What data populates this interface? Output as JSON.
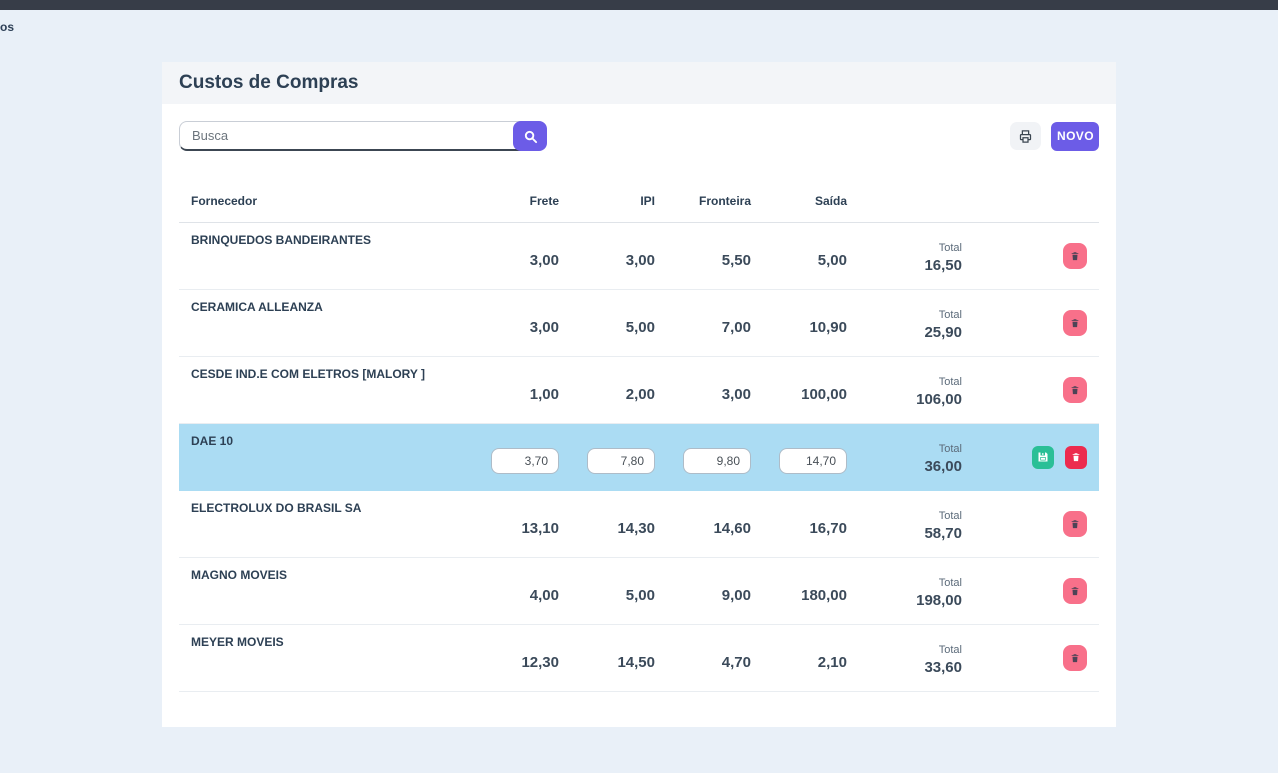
{
  "page": {
    "nav_text_fragment": "os"
  },
  "colors": {
    "accent_purple": "#6c5ce7",
    "topbar": "#373d48",
    "page_background": "#e9f0f8",
    "highlight_row": "#abdcf3",
    "delete_pink": "#f8708a",
    "delete_red": "#ec2b4e",
    "save_green": "#2abf96"
  },
  "icons": {
    "search": "magnifier-icon",
    "print": "printer-icon",
    "delete": "trash-icon",
    "save": "floppy-disk-icon"
  },
  "card": {
    "title": "Custos de Compras",
    "search": {
      "placeholder": "Busca"
    },
    "toolbar": {
      "novo_label": "NOVO"
    }
  },
  "table": {
    "headers": {
      "fornecedor": "Fornecedor",
      "frete": "Frete",
      "ipi": "IPI",
      "fronteira": "Fronteira",
      "saida": "Saída"
    },
    "total_label": "Total",
    "rows": [
      {
        "fornecedor": "BRINQUEDOS BANDEIRANTES",
        "frete": "3,00",
        "ipi": "3,00",
        "fronteira": "5,50",
        "saida": "5,00",
        "total": "16,50",
        "editing": false
      },
      {
        "fornecedor": "CERAMICA ALLEANZA",
        "frete": "3,00",
        "ipi": "5,00",
        "fronteira": "7,00",
        "saida": "10,90",
        "total": "25,90",
        "editing": false
      },
      {
        "fornecedor": "CESDE IND.E COM ELETROS [MALORY ]",
        "frete": "1,00",
        "ipi": "2,00",
        "fronteira": "3,00",
        "saida": "100,00",
        "total": "106,00",
        "editing": false
      },
      {
        "fornecedor": "DAE 10",
        "frete": "3,70",
        "ipi": "7,80",
        "fronteira": "9,80",
        "saida": "14,70",
        "total": "36,00",
        "editing": true
      },
      {
        "fornecedor": "ELECTROLUX DO BRASIL SA",
        "frete": "13,10",
        "ipi": "14,30",
        "fronteira": "14,60",
        "saida": "16,70",
        "total": "58,70",
        "editing": false
      },
      {
        "fornecedor": "MAGNO MOVEIS",
        "frete": "4,00",
        "ipi": "5,00",
        "fronteira": "9,00",
        "saida": "180,00",
        "total": "198,00",
        "editing": false
      },
      {
        "fornecedor": "MEYER MOVEIS",
        "frete": "12,30",
        "ipi": "14,50",
        "fronteira": "4,70",
        "saida": "2,10",
        "total": "33,60",
        "editing": false
      }
    ]
  }
}
